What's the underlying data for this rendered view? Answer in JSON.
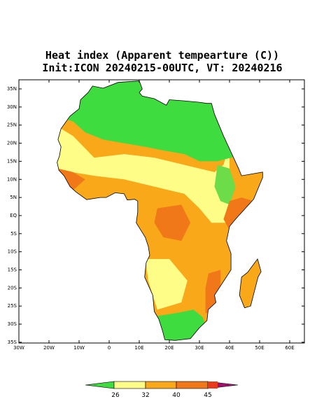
{
  "title": "Heat index (Apparent tempearture (C))",
  "subtitle": "Init:ICON 20240215-00UTC, VT: 20240216",
  "lat_ticks": [
    "35N",
    "30N",
    "25N",
    "20N",
    "15N",
    "10N",
    "5N",
    "EQ",
    "5S",
    "10S",
    "15S",
    "20S",
    "25S",
    "30S",
    "35S"
  ],
  "lon_ticks": [
    "30W",
    "20W",
    "10W",
    "0",
    "10E",
    "20E",
    "30E",
    "40E",
    "50E",
    "60E"
  ],
  "colorbar": {
    "labels": [
      26,
      32,
      40,
      45
    ]
  }
}
